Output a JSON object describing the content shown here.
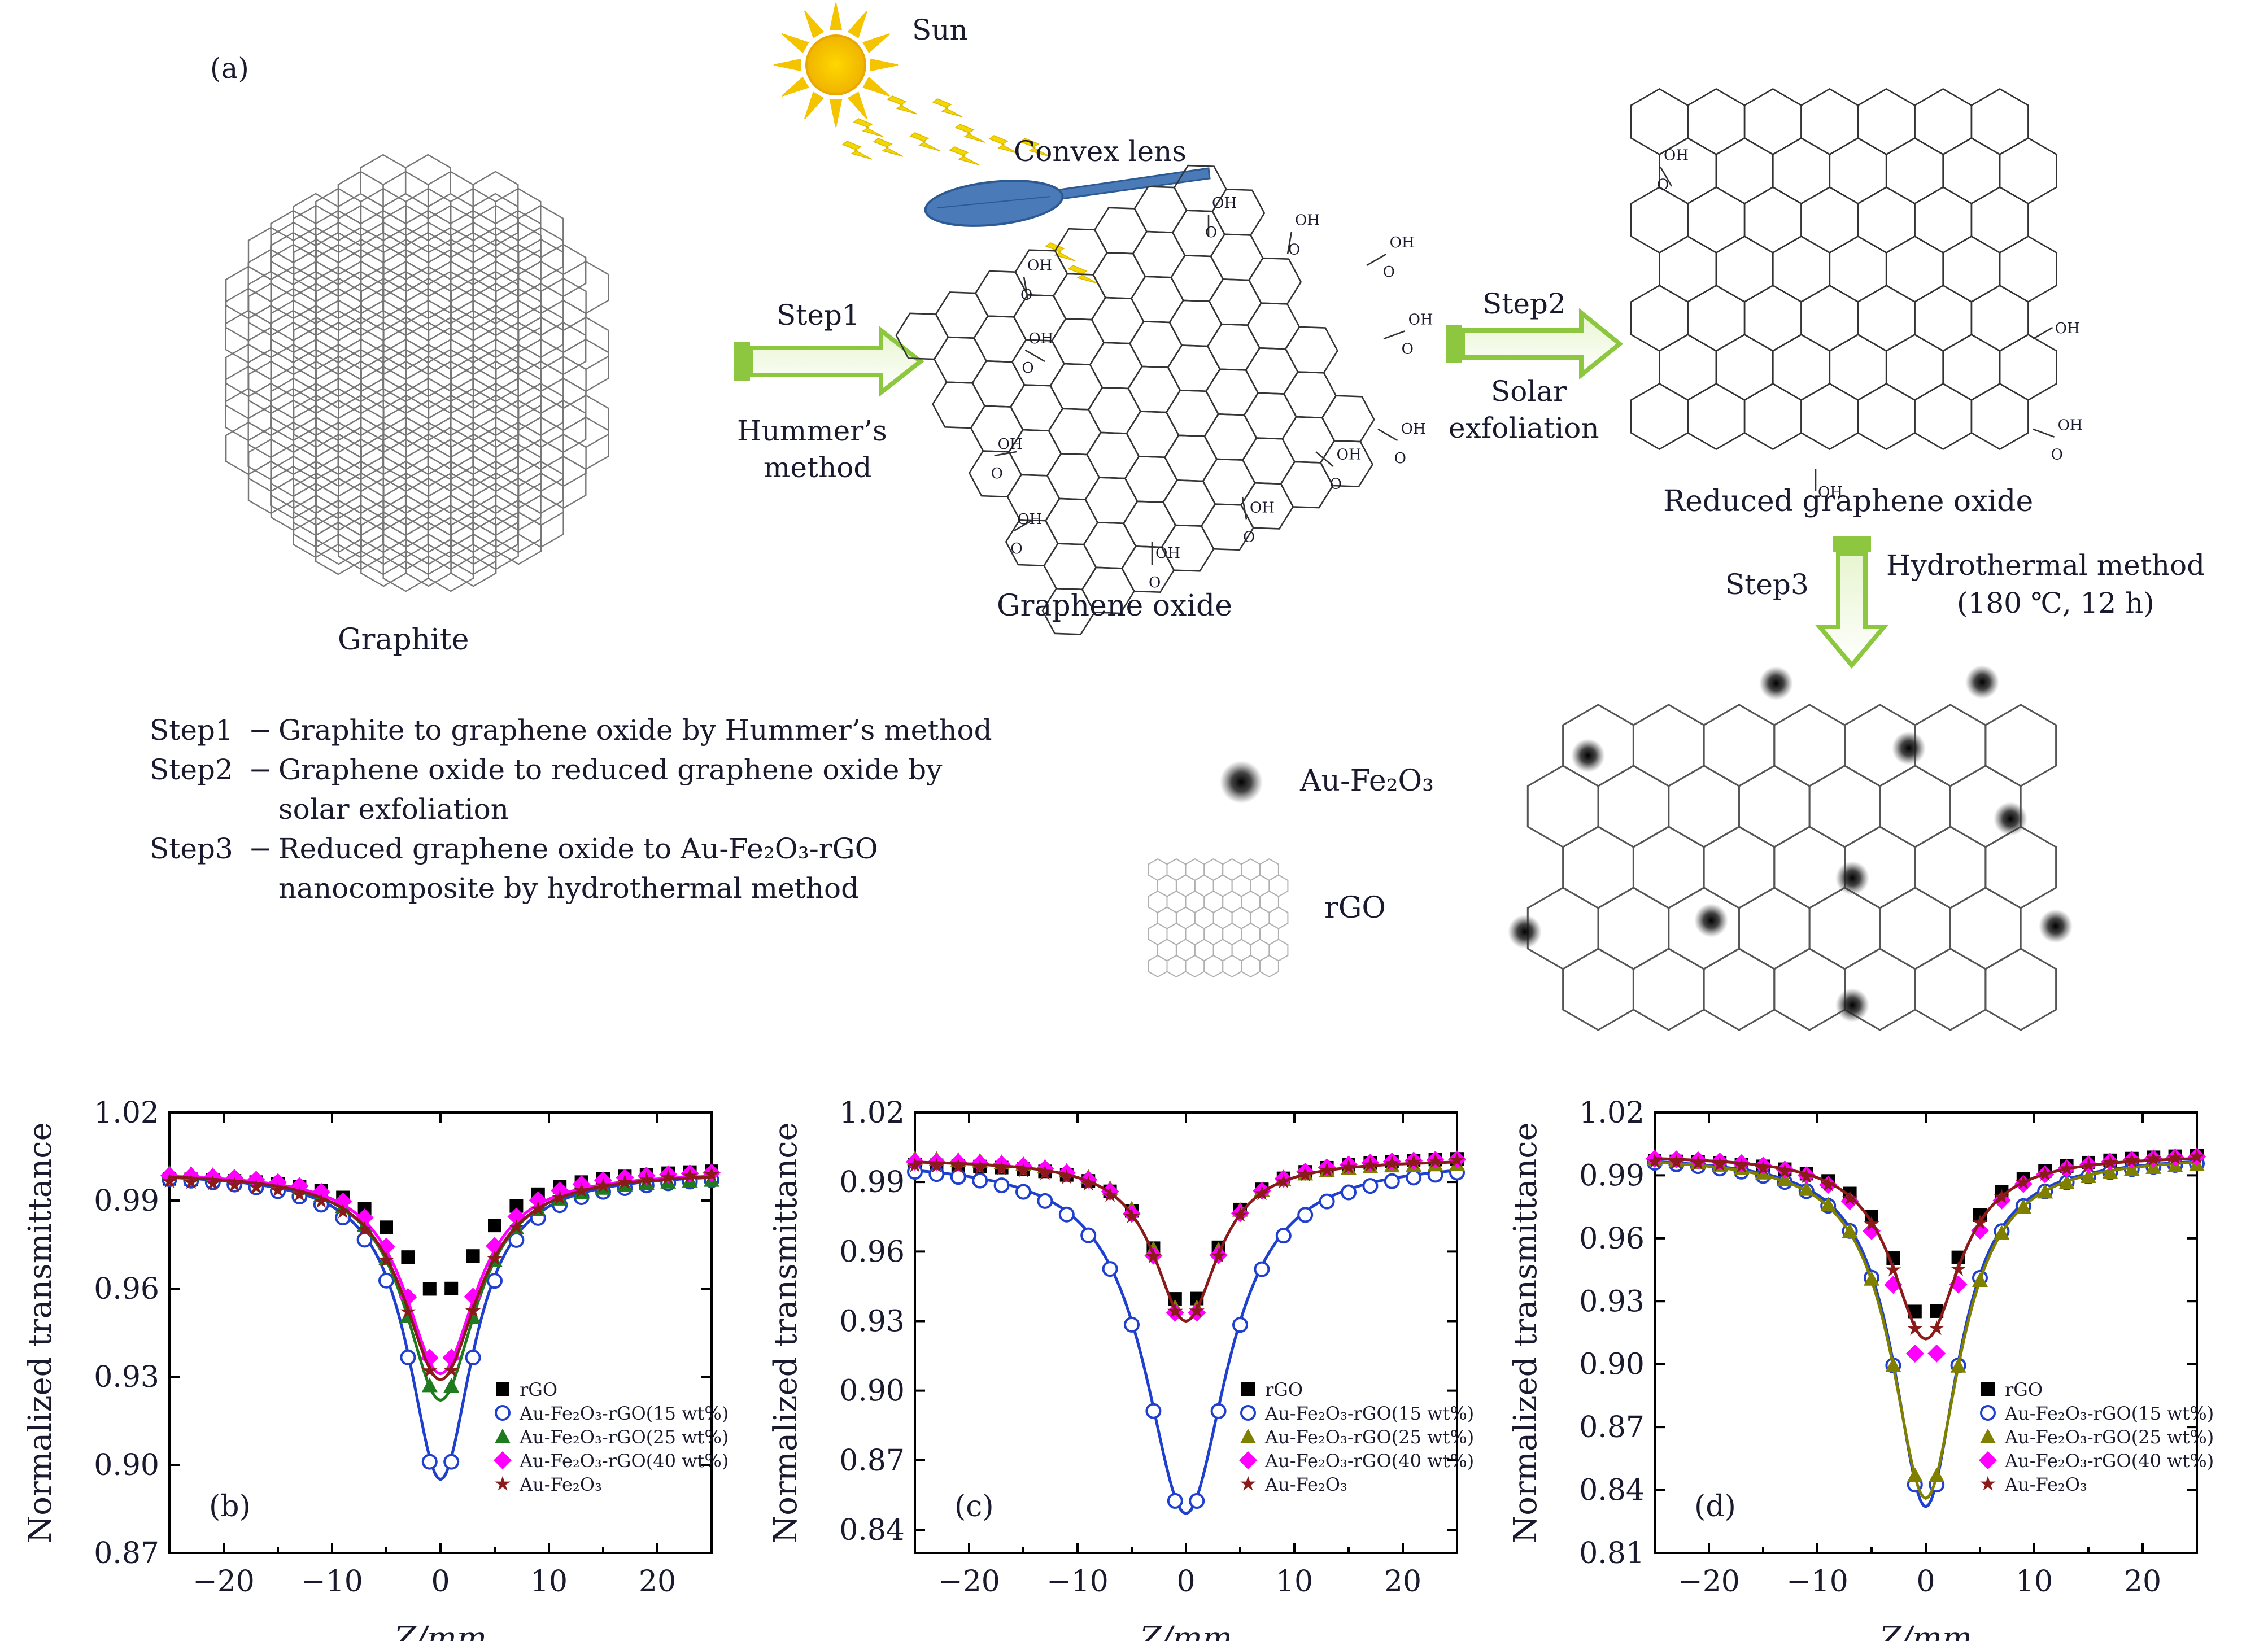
{
  "panel_a": {
    "label": "(a)",
    "sun_label": "Sun",
    "lens_label": "Convex lens",
    "graphite_label": "Graphite",
    "step1_label": "Step1",
    "step1_method": [
      "Hummer’s",
      "method"
    ],
    "go_label": "Graphene oxide",
    "step2_label": "Step2",
    "step2_method": [
      "Solar",
      "exfoliation"
    ],
    "rgo_label": "Reduced graphene oxide",
    "step3_label": "Step3",
    "step3_method": [
      "Hydrothermal method",
      "(180 ℃, 12 h)"
    ],
    "legend_np": "Au-Fe₂O₃",
    "legend_rgo": "rGO",
    "steps_text": [
      {
        "step": "Step1",
        "dash": "−",
        "lines": [
          "Graphite to graphene oxide by Hummer’s method"
        ]
      },
      {
        "step": "Step2",
        "dash": "−",
        "lines": [
          "Graphene oxide to reduced graphene oxide by",
          "solar exfoliation"
        ]
      },
      {
        "step": "Step3",
        "dash": "−",
        "lines": [
          "Reduced graphene oxide to Au-Fe₂O₃-rGO",
          "nanocomposite by hydrothermal method"
        ]
      }
    ],
    "group_oh": "OH",
    "group_ho": "HO",
    "group_o": "O",
    "colors": {
      "arrow_green": "#8dc63f",
      "lens_blue": "#4a7ab8",
      "sun_yellow": "#f5c400",
      "ray_yellow": "#f0d800"
    }
  },
  "chart_data": [
    {
      "type": "scatter",
      "panel_label": "(b)",
      "xlabel": "Z/mm",
      "ylabel": "Normalized transmittance",
      "xlim": [
        -25,
        25
      ],
      "ylim": [
        0.87,
        1.02
      ],
      "xticks": [
        "−20",
        "−10",
        "0",
        "10",
        "20"
      ],
      "yticks": [
        "0.87",
        "0.90",
        "0.93",
        "0.96",
        "0.99",
        "1.02"
      ],
      "series": [
        {
          "name": "rGO",
          "marker": "square",
          "color": "#000000",
          "fit": false,
          "min": 0.958,
          "width": 4.5
        },
        {
          "name": "Au-Fe₂O₃-rGO(15 wt%)",
          "marker": "circle-open",
          "color": "#1f3fcf",
          "fit": true,
          "min": 0.895,
          "width": 3.6
        },
        {
          "name": "Au-Fe₂O₃-rGO(25 wt%)",
          "marker": "triangle",
          "color": "#1e7b1e",
          "fit": true,
          "min": 0.922,
          "width": 4.0
        },
        {
          "name": "Au-Fe₂O₃-rGO(40 wt%)",
          "marker": "diamond",
          "color": "#ff00ff",
          "fit": true,
          "min": 0.931,
          "width": 4.0
        },
        {
          "name": "Au-Fe₂O₃",
          "marker": "star",
          "color": "#8b1a1a",
          "fit": true,
          "min": 0.929,
          "width": 4.2
        }
      ]
    },
    {
      "type": "scatter",
      "panel_label": "(c)",
      "xlabel": "Z/mm",
      "ylabel": "Normalized transmittance",
      "xlim": [
        -25,
        25
      ],
      "ylim": [
        0.83,
        1.02
      ],
      "xticks": [
        "−20",
        "−10",
        "0",
        "10",
        "20"
      ],
      "yticks": [
        "0.84",
        "0.87",
        "0.90",
        "0.93",
        "0.96",
        "0.99",
        "1.02"
      ],
      "series": [
        {
          "name": "rGO",
          "marker": "square",
          "color": "#000000",
          "fit": false,
          "min": 0.935,
          "width": 3.6
        },
        {
          "name": "Au-Fe₂O₃-rGO(15 wt%)",
          "marker": "circle-open",
          "color": "#1f3fcf",
          "fit": true,
          "min": 0.847,
          "width": 4.6
        },
        {
          "name": "Au-Fe₂O₃-rGO(25 wt%)",
          "marker": "triangle",
          "color": "#808000",
          "fit": false,
          "min": 0.93,
          "width": 3.4
        },
        {
          "name": "Au-Fe₂O₃-rGO(40 wt%)",
          "marker": "diamond",
          "color": "#ff00ff",
          "fit": false,
          "min": 0.927,
          "width": 3.6
        },
        {
          "name": "Au-Fe₂O₃",
          "marker": "star",
          "color": "#8b1a1a",
          "fit": true,
          "min": 0.93,
          "width": 3.6
        }
      ]
    },
    {
      "type": "scatter",
      "panel_label": "(d)",
      "xlabel": "Z/mm",
      "ylabel": "Normalized transmittance",
      "xlim": [
        -25,
        25
      ],
      "ylim": [
        0.81,
        1.02
      ],
      "xticks": [
        "−20",
        "−10",
        "0",
        "10",
        "20"
      ],
      "yticks": [
        "0.81",
        "0.84",
        "0.87",
        "0.90",
        "0.93",
        "0.96",
        "0.99",
        "1.02"
      ],
      "series": [
        {
          "name": "rGO",
          "marker": "square",
          "color": "#000000",
          "fit": false,
          "min": 0.92,
          "width": 3.8
        },
        {
          "name": "Au-Fe₂O₃-rGO(15 wt%)",
          "marker": "circle-open",
          "color": "#1f3fcf",
          "fit": true,
          "min": 0.832,
          "width": 3.6
        },
        {
          "name": "Au-Fe₂O₃-rGO(25 wt%)",
          "marker": "triangle",
          "color": "#808000",
          "fit": true,
          "min": 0.836,
          "width": 3.8
        },
        {
          "name": "Au-Fe₂O₃-rGO(40 wt%)",
          "marker": "diamond",
          "color": "#ff00ff",
          "fit": false,
          "min": 0.897,
          "width": 3.8
        },
        {
          "name": "Au-Fe₂O₃",
          "marker": "star",
          "color": "#8b1a1a",
          "fit": true,
          "min": 0.912,
          "width": 3.8
        }
      ]
    }
  ]
}
